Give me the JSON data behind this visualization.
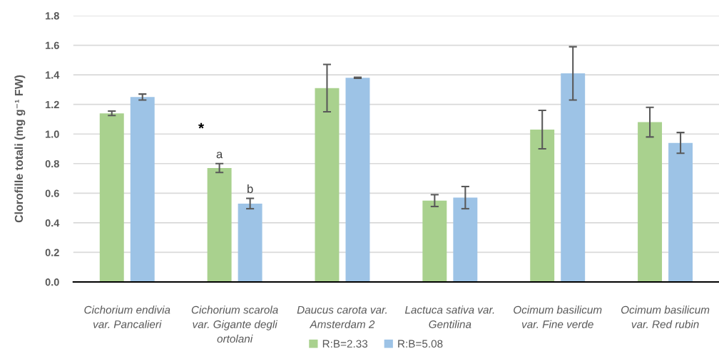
{
  "chart_data": {
    "type": "bar",
    "ylabel": "Clorofille totali (mg g⁻¹ FW)",
    "categories": [
      "Cichorium endivia\nvar. Pancalieri",
      "Cichorium scarola\nvar. Gigante degli\nortolani",
      "Daucus carota var.\nAmsterdam 2",
      "Lactuca sativa var.\nGentilina",
      "Ocimum basilicum\nvar. Fine verde",
      "Ocimum basilicum\nvar. Red rubin"
    ],
    "series": [
      {
        "name": "R:B=2.33",
        "color": "#a9d18e",
        "values": [
          1.14,
          0.77,
          1.31,
          0.55,
          1.03,
          1.08
        ],
        "errors": [
          0.015,
          0.03,
          0.16,
          0.04,
          0.13,
          0.1
        ],
        "value_labels": [
          null,
          "a",
          null,
          null,
          null,
          null
        ]
      },
      {
        "name": "R:B=5.08",
        "color": "#9dc3e6",
        "values": [
          1.25,
          0.53,
          1.38,
          0.57,
          1.41,
          0.94
        ],
        "errors": [
          0.02,
          0.035,
          0.003,
          0.075,
          0.18,
          0.07
        ],
        "value_labels": [
          null,
          "b",
          null,
          null,
          null,
          null
        ]
      }
    ],
    "annotations": [
      "*"
    ],
    "ylim": [
      0.0,
      1.8
    ],
    "yticks": [
      {
        "value": 0,
        "label": "0.0"
      },
      0.2,
      0.4,
      0.6,
      0.8,
      {
        "value": 1,
        "label": "1.0"
      },
      1.2,
      1.4,
      1.6,
      1.8
    ],
    "grid": "y",
    "legend": "bottom"
  }
}
